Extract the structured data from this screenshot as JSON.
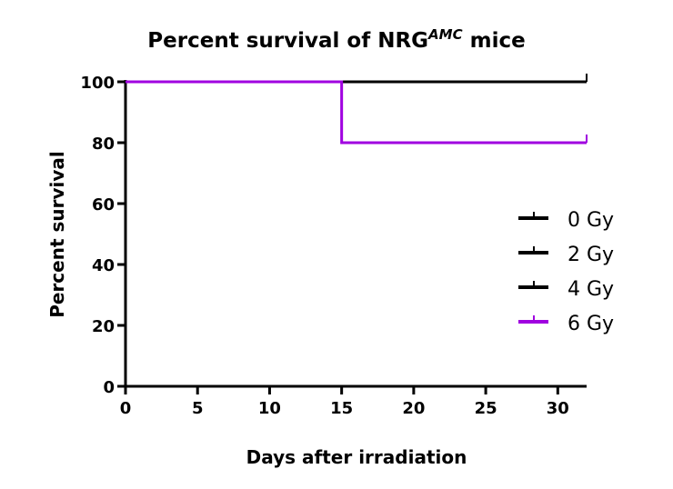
{
  "chart_data": {
    "type": "line",
    "subtype": "kaplan-meier step",
    "title": "Percent survival of NRG",
    "title_superscript": "AMC",
    "title_suffix": " mice",
    "xlabel": "Days after irradiation",
    "ylabel": "Percent survival",
    "xlim": [
      0,
      32
    ],
    "ylim": [
      0,
      100
    ],
    "xticks": [
      0,
      5,
      10,
      15,
      20,
      25,
      30
    ],
    "yticks": [
      0,
      20,
      40,
      60,
      80,
      100
    ],
    "grid": false,
    "legend_position": "right",
    "series": [
      {
        "name": "0 Gy",
        "color": "#000000",
        "x": [
          0,
          32
        ],
        "y": [
          100,
          100
        ]
      },
      {
        "name": "2 Gy",
        "color": "#000000",
        "x": [
          0,
          32
        ],
        "y": [
          100,
          100
        ]
      },
      {
        "name": "4 Gy",
        "color": "#000000",
        "x": [
          0,
          32
        ],
        "y": [
          100,
          100
        ]
      },
      {
        "name": "6 Gy",
        "color": "#a000e0",
        "x": [
          0,
          15,
          32
        ],
        "y": [
          100,
          80,
          80
        ]
      }
    ]
  }
}
